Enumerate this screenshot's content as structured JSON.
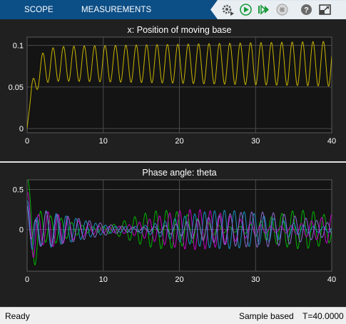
{
  "tabs": {
    "scope": "SCOPE",
    "measurements": "MEASUREMENTS"
  },
  "toolbar": {
    "icons": [
      "settings-gear-icon",
      "run-icon",
      "step-forward-icon",
      "stop-icon",
      "help-icon",
      "undock-icon"
    ],
    "help_glyph": "?"
  },
  "colors": {
    "tabbar": "#0c4e86",
    "plot_background": "#141414",
    "figure_background": "#202020",
    "grid": "#4a4a4a",
    "axis_text": "#ffffff",
    "series_yellow": "#c8b400",
    "series_green": "#00b400",
    "series_magenta": "#c800c8",
    "series_cyan": "#1890c0",
    "series_purple": "#8c6cd0"
  },
  "status": {
    "left": "Ready",
    "mode": "Sample based",
    "time": "T=40.0000"
  },
  "chart_data": [
    {
      "type": "line",
      "title": "x: Position of moving base",
      "xlabel": "",
      "ylabel": "",
      "xlim": [
        0,
        40
      ],
      "ylim": [
        -0.005,
        0.11
      ],
      "xticks": [
        "0",
        "10",
        "20",
        "30",
        "40"
      ],
      "yticks": [
        "0",
        "0.05",
        "0.1"
      ],
      "ytick_values": [
        0,
        0.05,
        0.1
      ],
      "grid": true,
      "series": [
        {
          "color": "#c8b400",
          "model": {
            "offset": 0.078,
            "amp_start": 0.02,
            "amp_end": 0.027,
            "period": 1.365,
            "rise_time": 0.8
          }
        }
      ]
    },
    {
      "type": "line",
      "title": "Phase angle: theta",
      "xlabel": "",
      "ylabel": "",
      "xlim": [
        0,
        40
      ],
      "ylim": [
        -0.52,
        0.62
      ],
      "xticks": [
        "0",
        "10",
        "20",
        "30",
        "40"
      ],
      "yticks": [
        "0.5",
        "0"
      ],
      "ytick_values": [
        0.5,
        0
      ],
      "grid": true,
      "series": [
        {
          "color": "#00b400",
          "model": {
            "start": 0.72,
            "amp": 0.24,
            "period": 1.38,
            "phase": 0.0,
            "beat": 18,
            "floor": 0.04
          }
        },
        {
          "color": "#c800c8",
          "model": {
            "start": 0.45,
            "amp": 0.25,
            "period": 1.33,
            "phase": 1.1,
            "beat": 22,
            "floor": 0.05
          }
        },
        {
          "color": "#1890c0",
          "model": {
            "start": 0.35,
            "amp": 0.24,
            "period": 1.3,
            "phase": 2.0,
            "beat": 26,
            "floor": 0.05
          }
        },
        {
          "color": "#8c6cd0",
          "model": {
            "start": 0.3,
            "amp": 0.22,
            "period": 1.42,
            "phase": 3.0,
            "beat": 30,
            "floor": 0.03
          }
        }
      ]
    }
  ]
}
